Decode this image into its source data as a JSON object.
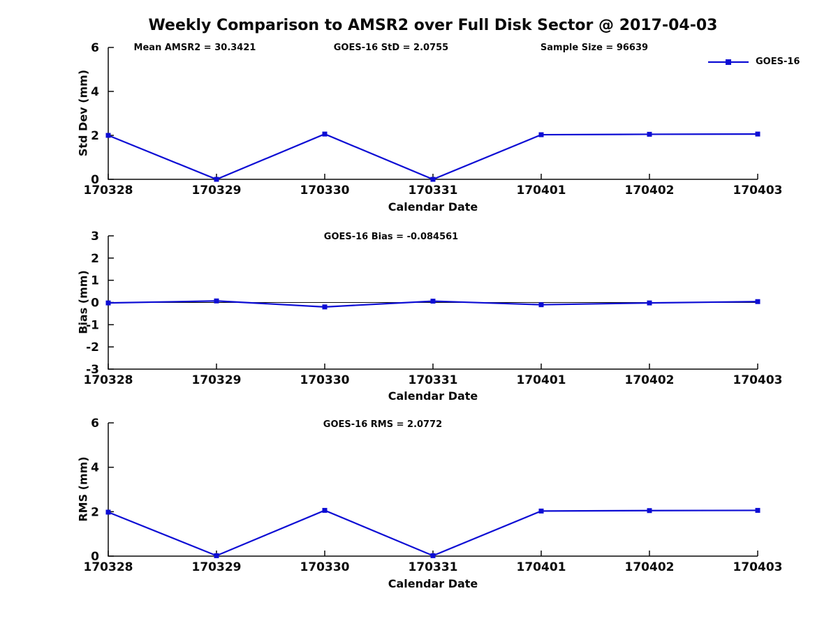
{
  "figure": {
    "title": "Weekly Comparison to AMSR2 over Full Disk Sector @ 2017-04-03",
    "legend": {
      "label": "GOES-16",
      "position": "top-right"
    },
    "line_color": "#0d0dd4",
    "axis_color": "#0a0a0a",
    "background_color": "#ffffff"
  },
  "chart_data": [
    {
      "type": "line",
      "annotations": [
        "Mean AMSR2 = 30.3421",
        "GOES-16 StD = 2.0755",
        "Sample Size = 96639"
      ],
      "categories": [
        "170328",
        "170329",
        "170330",
        "170331",
        "170401",
        "170402",
        "170403"
      ],
      "series": [
        {
          "name": "GOES-16",
          "values": [
            2.0,
            0.0,
            2.06,
            0.0,
            2.03,
            2.05,
            2.06
          ]
        }
      ],
      "xlabel": "Calendar Date",
      "ylabel": "Std Dev (mm)",
      "ylim": [
        0,
        6
      ],
      "yticks": [
        0,
        2,
        4,
        6
      ],
      "zero_line": false,
      "grid": false,
      "legend_position": "top-right"
    },
    {
      "type": "line",
      "annotations": [
        "GOES-16 Bias  = -0.084561"
      ],
      "categories": [
        "170328",
        "170329",
        "170330",
        "170331",
        "170401",
        "170402",
        "170403"
      ],
      "series": [
        {
          "name": "GOES-16",
          "values": [
            -0.02,
            0.07,
            -0.2,
            0.06,
            -0.1,
            -0.02,
            0.04
          ]
        }
      ],
      "xlabel": "Calendar Date",
      "ylabel": "Bias (mm)",
      "ylim": [
        -3,
        3
      ],
      "yticks": [
        -3,
        -2,
        -1,
        0,
        1,
        2,
        3
      ],
      "zero_line": true,
      "grid": false,
      "legend_position": "none"
    },
    {
      "type": "line",
      "annotations": [
        "GOES-16 RMS = 2.0772"
      ],
      "categories": [
        "170328",
        "170329",
        "170330",
        "170331",
        "170401",
        "170402",
        "170403"
      ],
      "series": [
        {
          "name": "GOES-16",
          "values": [
            1.98,
            0.02,
            2.06,
            0.02,
            2.03,
            2.05,
            2.06
          ]
        }
      ],
      "xlabel": "Calendar Date",
      "ylabel": "RMS (mm)",
      "ylim": [
        0,
        6
      ],
      "yticks": [
        0,
        2,
        4,
        6
      ],
      "zero_line": false,
      "grid": false,
      "legend_position": "none"
    }
  ]
}
